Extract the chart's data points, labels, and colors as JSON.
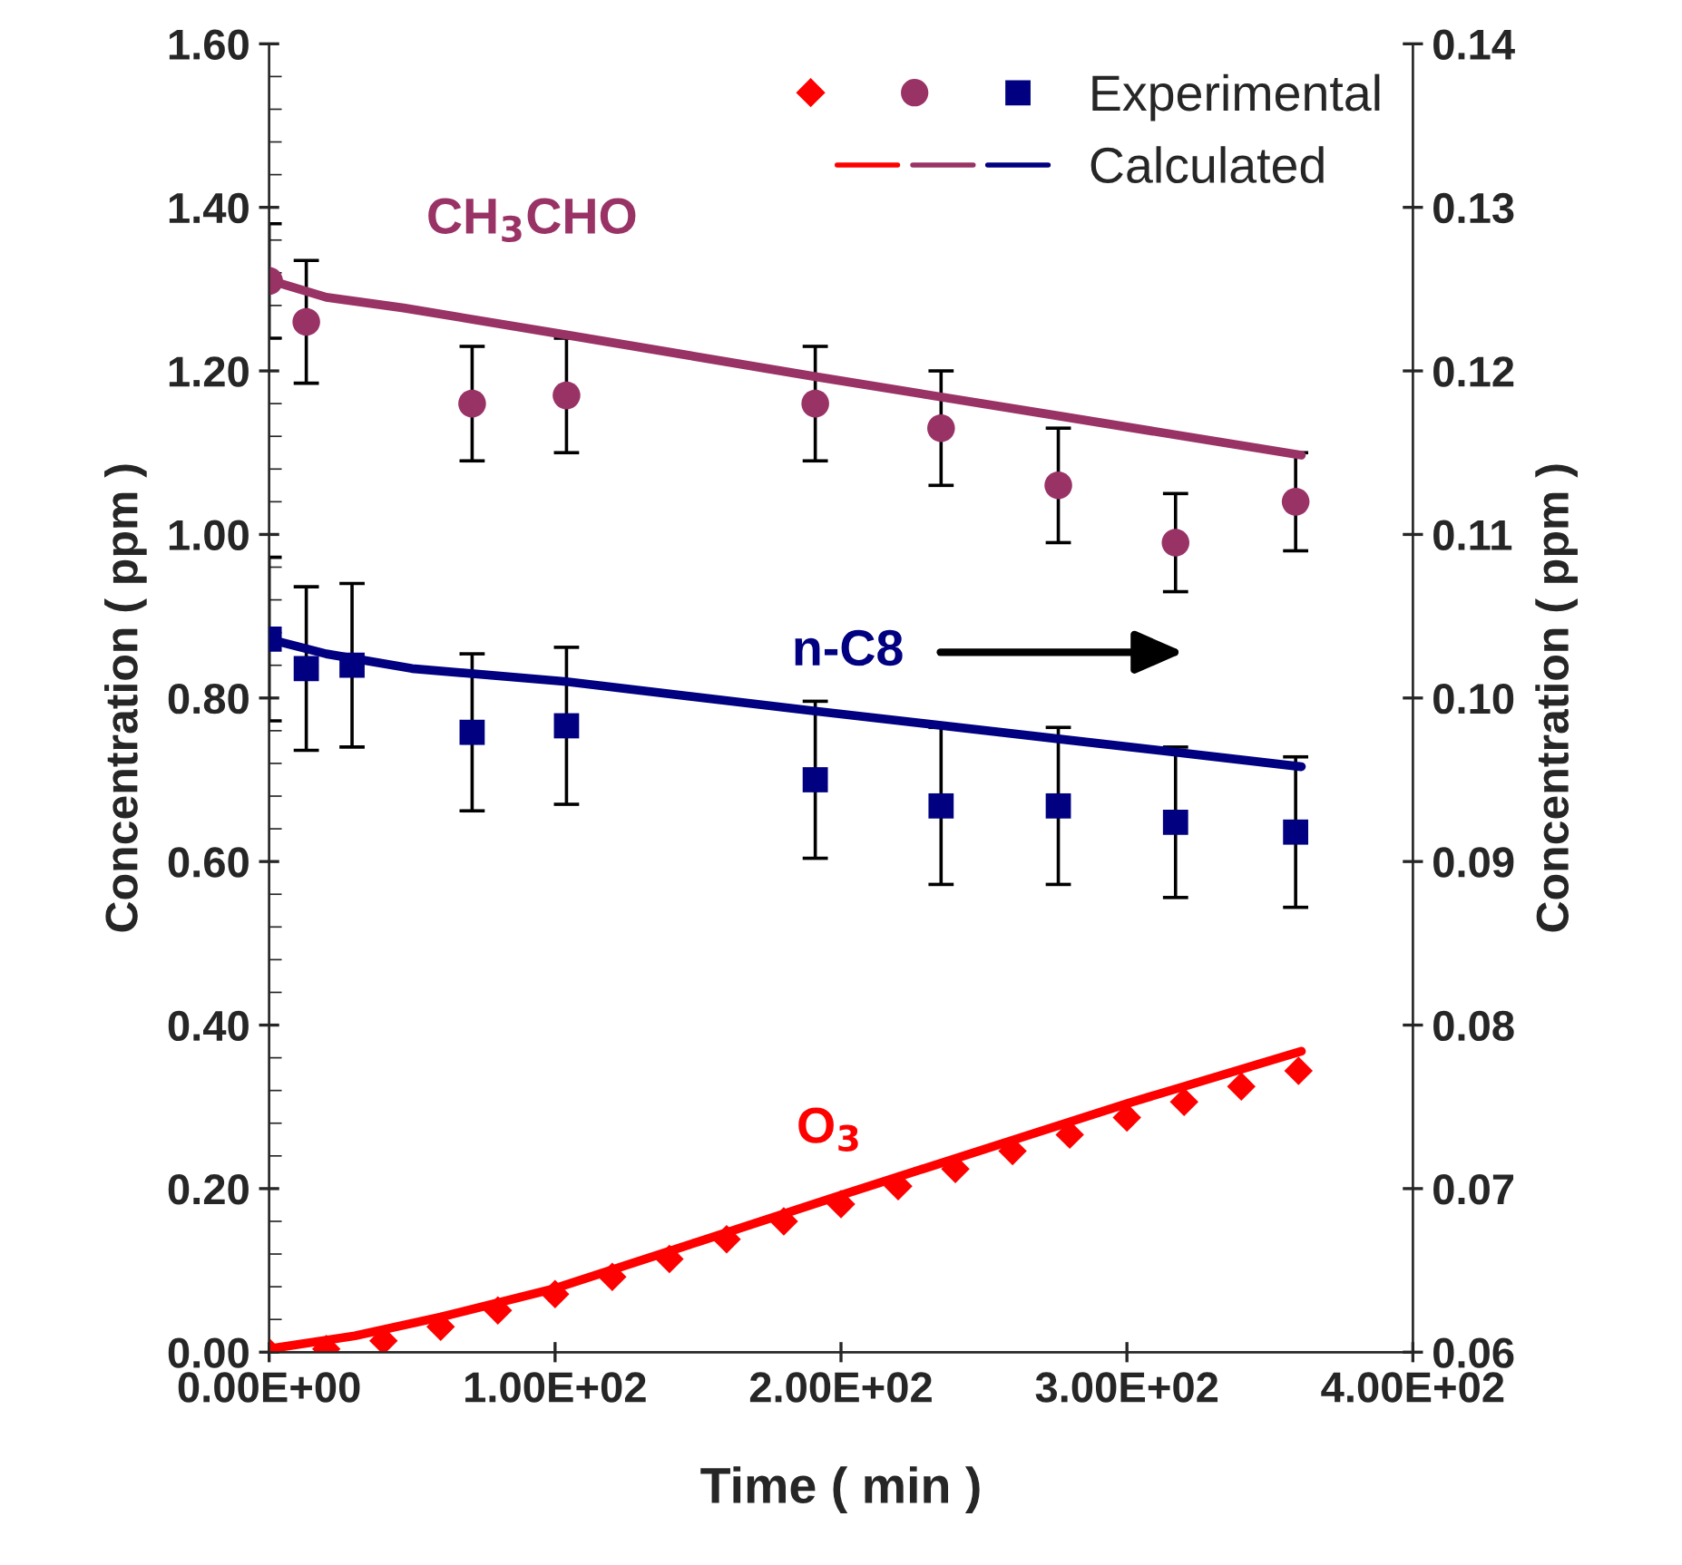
{
  "chart_data": {
    "type": "scatter",
    "xlabel": "Time ( min )",
    "ylabel": "Concentration ( ppm )",
    "y2label": "Concentration ( ppm )",
    "xlim": [
      0,
      400
    ],
    "xticks": [
      {
        "value": 0,
        "label": "0.00E+00"
      },
      {
        "value": 100,
        "label": "1.00E+02"
      },
      {
        "value": 200,
        "label": "2.00E+02"
      },
      {
        "value": 300,
        "label": "3.00E+02"
      },
      {
        "value": 400,
        "label": "4.00E+02"
      }
    ],
    "ylim": [
      0,
      1.6
    ],
    "yticks": [
      {
        "value": 0,
        "label": "0.00"
      },
      {
        "value": 0.2,
        "label": "0.20"
      },
      {
        "value": 0.4,
        "label": "0.40"
      },
      {
        "value": 0.6,
        "label": "0.60"
      },
      {
        "value": 0.8,
        "label": "0.80"
      },
      {
        "value": 1.0,
        "label": "1.00"
      },
      {
        "value": 1.2,
        "label": "1.20"
      },
      {
        "value": 1.4,
        "label": "1.40"
      },
      {
        "value": 1.6,
        "label": "1.60"
      }
    ],
    "y2lim": [
      0.06,
      0.14
    ],
    "y2ticks": [
      {
        "value": 0.06,
        "label": "0.06"
      },
      {
        "value": 0.07,
        "label": "0.07"
      },
      {
        "value": 0.08,
        "label": "0.08"
      },
      {
        "value": 0.09,
        "label": "0.09"
      },
      {
        "value": 0.1,
        "label": "0.10"
      },
      {
        "value": 0.11,
        "label": "0.11"
      },
      {
        "value": 0.12,
        "label": "0.12"
      },
      {
        "value": 0.13,
        "label": "0.13"
      },
      {
        "value": 0.14,
        "label": "0.14"
      }
    ],
    "grid": false,
    "legend": "top right",
    "annotations": [
      "CH$_{3}$CHO",
      "n-C8",
      "O$_{3}$"
    ],
    "series": [
      {
        "marker": "diamond",
        "color": "#ff0000",
        "x": [
          0,
          20,
          40,
          60,
          80,
          100,
          120,
          140,
          160,
          180,
          200,
          220,
          240,
          260,
          280,
          300,
          320,
          340,
          360
        ],
        "values": [
          0,
          0.004,
          0.014,
          0.031,
          0.051,
          0.071,
          0.092,
          0.114,
          0.138,
          0.16,
          0.181,
          0.203,
          0.224,
          0.246,
          0.266,
          0.287,
          0.306,
          0.325,
          0.344
        ]
      },
      {
        "marker": "circle",
        "color": "#993366",
        "x": [
          0,
          13,
          71,
          104,
          191,
          235,
          276,
          317,
          359
        ],
        "values": [
          1.31,
          1.26,
          1.16,
          1.17,
          1.16,
          1.13,
          1.06,
          0.99,
          1.04
        ],
        "errors": [
          0.07,
          0.075,
          0.07,
          0.07,
          0.07,
          0.07,
          0.07,
          0.06,
          0.06
        ]
      },
      {
        "name": "Experimental",
        "marker": "square",
        "color": "#000080",
        "axis": "y2",
        "x": [
          0,
          13,
          29,
          71,
          104,
          191,
          235,
          276,
          317,
          359
        ],
        "values": [
          0.1036,
          0.1018,
          0.102,
          0.0979,
          0.0983,
          0.095,
          0.0934,
          0.0934,
          0.0924,
          0.0918
        ],
        "errors": [
          0.005,
          0.005,
          0.005,
          0.0048,
          0.0048,
          0.0048,
          0.0048,
          0.0048,
          0.0046,
          0.0046
        ]
      },
      {
        "type": "line",
        "line_style": "solid",
        "color": "#ff0000",
        "x": [
          0,
          30,
          60,
          100,
          150,
          200,
          250,
          300,
          361
        ],
        "values": [
          0.004,
          0.02,
          0.043,
          0.078,
          0.135,
          0.192,
          0.248,
          0.304,
          0.368
        ]
      },
      {
        "type": "line",
        "line_style": "solid",
        "color": "#993366",
        "x": [
          0,
          20,
          47,
          104,
          191,
          276,
          361
        ],
        "values": [
          1.311,
          1.29,
          1.277,
          1.244,
          1.193,
          1.145,
          1.097
        ]
      },
      {
        "type": "line",
        "name": "Calculated",
        "line_style": "solid",
        "color": "#000080",
        "axis": "y2",
        "x": [
          0,
          20,
          50,
          104,
          191,
          276,
          361
        ],
        "values": [
          0.1036,
          0.1027,
          0.1018,
          0.101,
          0.0992,
          0.0975,
          0.0958
        ]
      }
    ]
  }
}
